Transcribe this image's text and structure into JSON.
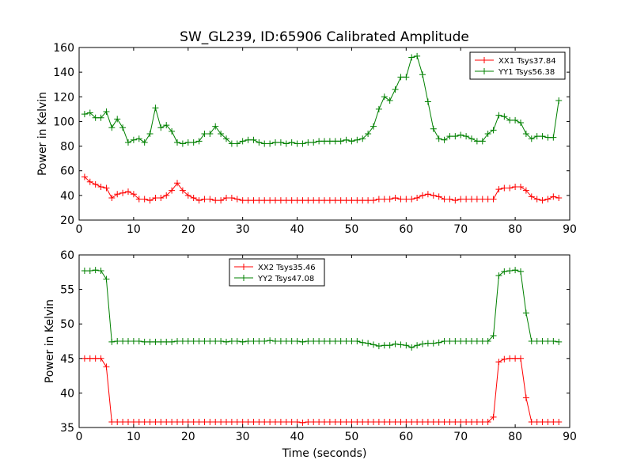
{
  "chart_data": [
    {
      "type": "line",
      "title": "SW_GL239, ID:65906 Calibrated Amplitude",
      "xlabel": "",
      "ylabel": "Power in Kelvin",
      "xlim": [
        0,
        90
      ],
      "ylim": [
        20,
        160
      ],
      "xticks": [
        "0",
        "10",
        "20",
        "30",
        "40",
        "50",
        "60",
        "70",
        "80",
        "90"
      ],
      "yticks": [
        "20",
        "40",
        "60",
        "80",
        "100",
        "120",
        "140",
        "160"
      ],
      "legend_position": "top-right",
      "grid": false,
      "series": [
        {
          "name": "XX1 Tsys37.84",
          "color": "#ff0000",
          "x": [
            1,
            2,
            3,
            4,
            5,
            6,
            7,
            8,
            9,
            10,
            11,
            12,
            13,
            14,
            15,
            16,
            17,
            18,
            19,
            20,
            21,
            22,
            23,
            24,
            25,
            26,
            27,
            28,
            29,
            30,
            31,
            32,
            33,
            34,
            35,
            36,
            37,
            38,
            39,
            40,
            41,
            42,
            43,
            44,
            45,
            46,
            47,
            48,
            49,
            50,
            51,
            52,
            53,
            54,
            55,
            56,
            57,
            58,
            59,
            60,
            61,
            62,
            63,
            64,
            65,
            66,
            67,
            68,
            69,
            70,
            71,
            72,
            73,
            74,
            75,
            76,
            77,
            78,
            79,
            80,
            81,
            82,
            83,
            84,
            85,
            86,
            87,
            88
          ],
          "values": [
            55,
            51,
            49,
            47,
            46,
            38,
            41,
            42,
            43,
            41,
            37,
            37,
            36,
            38,
            38,
            40,
            44,
            50,
            44,
            40,
            38,
            36,
            37,
            37,
            36,
            36,
            38,
            38,
            37,
            36,
            36,
            36,
            36,
            36,
            36,
            36,
            36,
            36,
            36,
            36,
            36,
            36,
            36,
            36,
            36,
            36,
            36,
            36,
            36,
            36,
            36,
            36,
            36,
            36,
            37,
            37,
            37,
            38,
            37,
            37,
            37,
            38,
            40,
            41,
            40,
            39,
            37,
            37,
            36,
            37,
            37,
            37,
            37,
            37,
            37,
            37,
            45,
            46,
            46,
            47,
            47,
            44,
            39,
            37,
            36,
            37,
            39,
            38
          ]
        },
        {
          "name": "YY1 Tsys56.38",
          "color": "#008000",
          "x": [
            1,
            2,
            3,
            4,
            5,
            6,
            7,
            8,
            9,
            10,
            11,
            12,
            13,
            14,
            15,
            16,
            17,
            18,
            19,
            20,
            21,
            22,
            23,
            24,
            25,
            26,
            27,
            28,
            29,
            30,
            31,
            32,
            33,
            34,
            35,
            36,
            37,
            38,
            39,
            40,
            41,
            42,
            43,
            44,
            45,
            46,
            47,
            48,
            49,
            50,
            51,
            52,
            53,
            54,
            55,
            56,
            57,
            58,
            59,
            60,
            61,
            62,
            63,
            64,
            65,
            66,
            67,
            68,
            69,
            70,
            71,
            72,
            73,
            74,
            75,
            76,
            77,
            78,
            79,
            80,
            81,
            82,
            83,
            84,
            85,
            86,
            87,
            88
          ],
          "values": [
            106,
            107,
            103,
            103,
            108,
            95,
            102,
            95,
            83,
            85,
            86,
            83,
            90,
            111,
            95,
            97,
            92,
            83,
            82,
            83,
            83,
            84,
            90,
            90,
            96,
            90,
            86,
            82,
            82,
            84,
            85,
            85,
            83,
            82,
            82,
            83,
            83,
            82,
            83,
            82,
            82,
            83,
            83,
            84,
            84,
            84,
            84,
            84,
            85,
            84,
            85,
            86,
            90,
            96,
            110,
            120,
            117,
            126,
            136,
            136,
            152,
            153,
            138,
            116,
            94,
            86,
            85,
            88,
            88,
            89,
            88,
            86,
            84,
            84,
            90,
            93,
            105,
            104,
            101,
            101,
            99,
            90,
            86,
            88,
            88,
            87,
            87,
            117
          ]
        }
      ]
    },
    {
      "type": "line",
      "title": "",
      "xlabel": "Time (seconds)",
      "ylabel": "Power in Kelvin",
      "xlim": [
        0,
        90
      ],
      "ylim": [
        35,
        60
      ],
      "xticks": [
        "0",
        "10",
        "20",
        "30",
        "40",
        "50",
        "60",
        "70",
        "80",
        "90"
      ],
      "yticks": [
        "35",
        "40",
        "45",
        "50",
        "55",
        "60"
      ],
      "legend_position": "top-center",
      "grid": false,
      "series": [
        {
          "name": "XX2 Tsys35.46",
          "color": "#ff0000",
          "x": [
            1,
            2,
            3,
            4,
            5,
            6,
            7,
            8,
            9,
            10,
            11,
            12,
            13,
            14,
            15,
            16,
            17,
            18,
            19,
            20,
            21,
            22,
            23,
            24,
            25,
            26,
            27,
            28,
            29,
            30,
            31,
            32,
            33,
            34,
            35,
            36,
            37,
            38,
            39,
            40,
            41,
            42,
            43,
            44,
            45,
            46,
            47,
            48,
            49,
            50,
            51,
            52,
            53,
            54,
            55,
            56,
            57,
            58,
            59,
            60,
            61,
            62,
            63,
            64,
            65,
            66,
            67,
            68,
            69,
            70,
            71,
            72,
            73,
            74,
            75,
            76,
            77,
            78,
            79,
            80,
            81,
            82,
            83,
            84,
            85,
            86,
            87,
            88
          ],
          "values": [
            45,
            45,
            45,
            45,
            43.8,
            35.8,
            35.8,
            35.8,
            35.8,
            35.8,
            35.8,
            35.8,
            35.8,
            35.8,
            35.8,
            35.8,
            35.8,
            35.8,
            35.8,
            35.8,
            35.8,
            35.8,
            35.8,
            35.8,
            35.8,
            35.8,
            35.8,
            35.8,
            35.8,
            35.8,
            35.8,
            35.8,
            35.8,
            35.8,
            35.8,
            35.8,
            35.8,
            35.8,
            35.8,
            35.8,
            35.7,
            35.8,
            35.8,
            35.8,
            35.8,
            35.8,
            35.8,
            35.8,
            35.8,
            35.8,
            35.8,
            35.8,
            35.8,
            35.8,
            35.8,
            35.8,
            35.8,
            35.8,
            35.8,
            35.8,
            35.8,
            35.8,
            35.8,
            35.8,
            35.8,
            35.8,
            35.8,
            35.8,
            35.8,
            35.8,
            35.8,
            35.8,
            35.8,
            35.8,
            35.8,
            36.5,
            44.5,
            44.9,
            45,
            45,
            45,
            39.3,
            35.8,
            35.8,
            35.8,
            35.8,
            35.8,
            35.8
          ]
        },
        {
          "name": "YY2 Tsys47.08",
          "color": "#008000",
          "x": [
            1,
            2,
            3,
            4,
            5,
            6,
            7,
            8,
            9,
            10,
            11,
            12,
            13,
            14,
            15,
            16,
            17,
            18,
            19,
            20,
            21,
            22,
            23,
            24,
            25,
            26,
            27,
            28,
            29,
            30,
            31,
            32,
            33,
            34,
            35,
            36,
            37,
            38,
            39,
            40,
            41,
            42,
            43,
            44,
            45,
            46,
            47,
            48,
            49,
            50,
            51,
            52,
            53,
            54,
            55,
            56,
            57,
            58,
            59,
            60,
            61,
            62,
            63,
            64,
            65,
            66,
            67,
            68,
            69,
            70,
            71,
            72,
            73,
            74,
            75,
            76,
            77,
            78,
            79,
            80,
            81,
            82,
            83,
            84,
            85,
            86,
            87,
            88
          ],
          "values": [
            57.7,
            57.7,
            57.8,
            57.7,
            56.5,
            47.4,
            47.5,
            47.5,
            47.5,
            47.5,
            47.5,
            47.4,
            47.4,
            47.4,
            47.4,
            47.4,
            47.4,
            47.5,
            47.5,
            47.5,
            47.5,
            47.5,
            47.5,
            47.5,
            47.5,
            47.5,
            47.4,
            47.5,
            47.5,
            47.4,
            47.5,
            47.5,
            47.5,
            47.5,
            47.6,
            47.5,
            47.5,
            47.5,
            47.5,
            47.5,
            47.4,
            47.5,
            47.5,
            47.5,
            47.5,
            47.5,
            47.5,
            47.5,
            47.5,
            47.5,
            47.5,
            47.3,
            47.2,
            47,
            46.8,
            46.9,
            46.9,
            47.1,
            47,
            46.9,
            46.6,
            46.9,
            47.1,
            47.2,
            47.2,
            47.3,
            47.5,
            47.5,
            47.5,
            47.5,
            47.5,
            47.5,
            47.5,
            47.5,
            47.5,
            48.3,
            57,
            57.6,
            57.7,
            57.8,
            57.6,
            51.6,
            47.5,
            47.5,
            47.5,
            47.5,
            47.5,
            47.4
          ]
        }
      ]
    }
  ]
}
